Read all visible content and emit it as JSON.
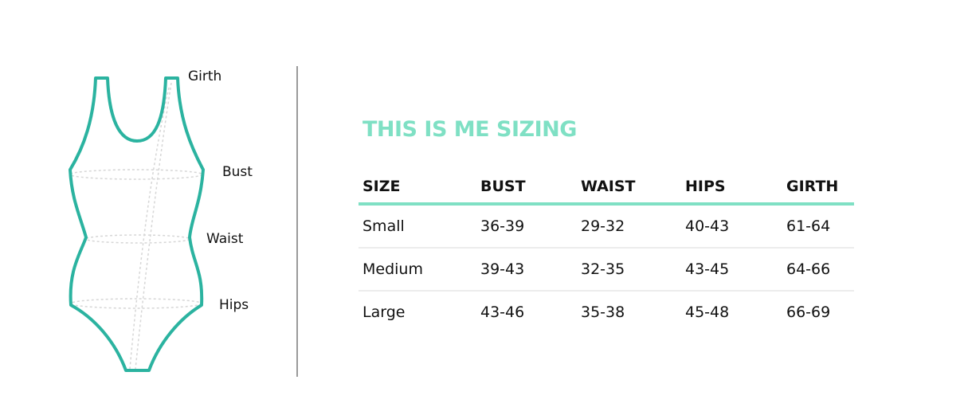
{
  "diagram": {
    "labels": {
      "girth": "Girth",
      "bust": "Bust",
      "waist": "Waist",
      "hips": "Hips"
    },
    "outline_color": "#2bb3a0"
  },
  "title": "THIS IS ME SIZING",
  "title_color": "#7fe0c4",
  "table": {
    "headers": [
      "SIZE",
      "BUST",
      "WAIST",
      "HIPS",
      "GIRTH"
    ],
    "rows": [
      [
        "Small",
        "36-39",
        "29-32",
        "40-43",
        "61-64"
      ],
      [
        "Medium",
        "39-43",
        "32-35",
        "43-45",
        "64-66"
      ],
      [
        "Large",
        "43-46",
        "35-38",
        "45-48",
        "66-69"
      ]
    ]
  }
}
